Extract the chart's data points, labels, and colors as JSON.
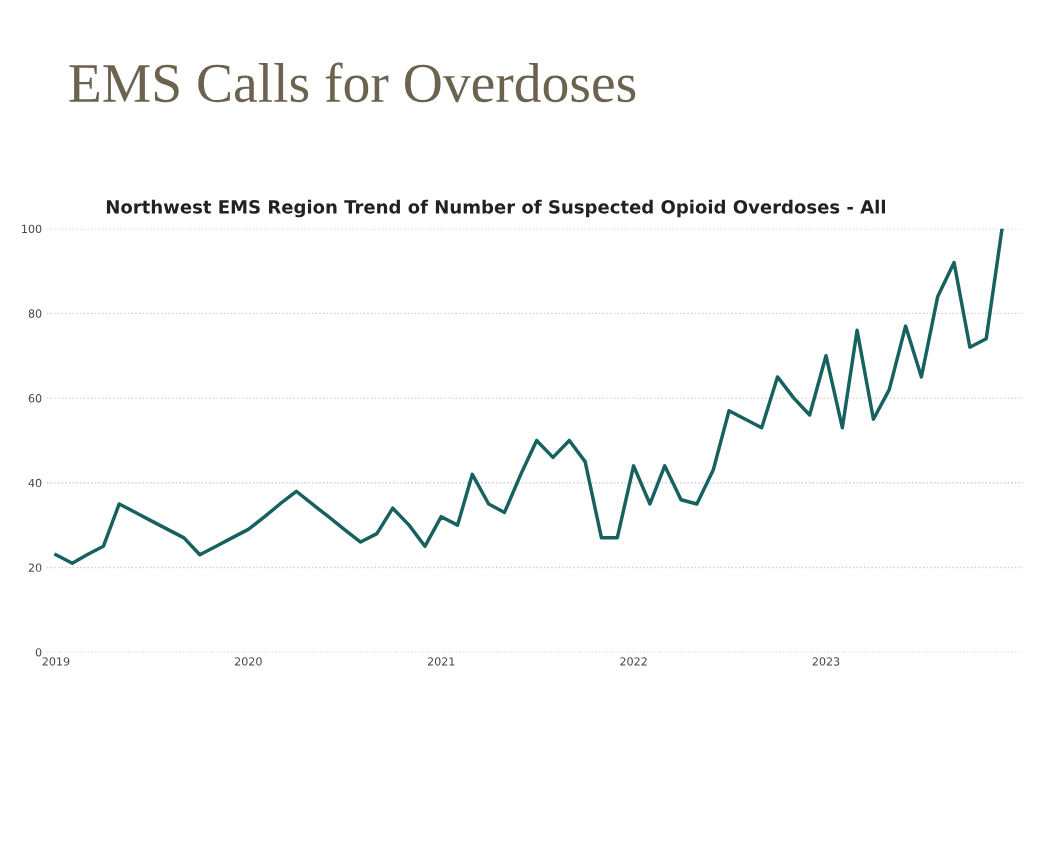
{
  "chart_data": {
    "type": "line",
    "title": "EMS Calls for Overdoses",
    "subtitle": "Northwest EMS Region Trend of Number of Suspected Opioid Overdoses - All",
    "x": [
      "2019-01",
      "2019-02",
      "2019-03",
      "2019-04",
      "2019-05",
      "2019-06",
      "2019-07",
      "2019-08",
      "2019-09",
      "2019-10",
      "2019-11",
      "2019-12",
      "2020-01",
      "2020-02",
      "2020-03",
      "2020-04",
      "2020-05",
      "2020-06",
      "2020-07",
      "2020-08",
      "2020-09",
      "2020-10",
      "2020-11",
      "2020-12",
      "2021-01",
      "2021-02",
      "2021-03",
      "2021-04",
      "2021-05",
      "2021-06",
      "2021-07",
      "2021-08",
      "2021-09",
      "2021-10",
      "2021-11",
      "2021-12",
      "2022-01",
      "2022-02",
      "2022-03",
      "2022-04",
      "2022-05",
      "2022-06",
      "2022-07",
      "2022-08",
      "2022-09",
      "2022-10",
      "2022-11",
      "2022-12",
      "2023-01",
      "2023-02",
      "2023-03",
      "2023-04",
      "2023-05",
      "2023-06",
      "2023-07",
      "2023-08",
      "2023-09",
      "2023-10",
      "2023-11",
      "2023-12"
    ],
    "series": [
      {
        "color": "#17615f",
        "values": [
          23,
          21,
          23,
          25,
          35,
          33,
          31,
          29,
          27,
          23,
          25,
          27,
          29,
          32,
          35,
          38,
          35,
          32,
          29,
          26,
          28,
          34,
          30,
          25,
          32,
          30,
          42,
          35,
          33,
          42,
          50,
          46,
          50,
          45,
          27,
          27,
          44,
          35,
          44,
          36,
          35,
          43,
          57,
          55,
          53,
          65,
          60,
          56,
          70,
          53,
          76,
          55,
          62,
          77,
          65,
          84,
          92,
          72,
          74,
          100
        ]
      }
    ],
    "xlim": [
      "2018-12-15",
      "2024-01-10"
    ],
    "xticks": [
      {
        "value": "2019-01",
        "label": "2019"
      },
      {
        "value": "2020-01",
        "label": "2020"
      },
      {
        "value": "2021-01",
        "label": "2021"
      },
      {
        "value": "2022-01",
        "label": "2022"
      },
      {
        "value": "2023-01",
        "label": "2023"
      }
    ],
    "ylim": [
      0,
      100
    ],
    "yticks": [
      0,
      20,
      40,
      60,
      80,
      100
    ],
    "grid": "y",
    "marker": "none",
    "line_style": "solid"
  }
}
